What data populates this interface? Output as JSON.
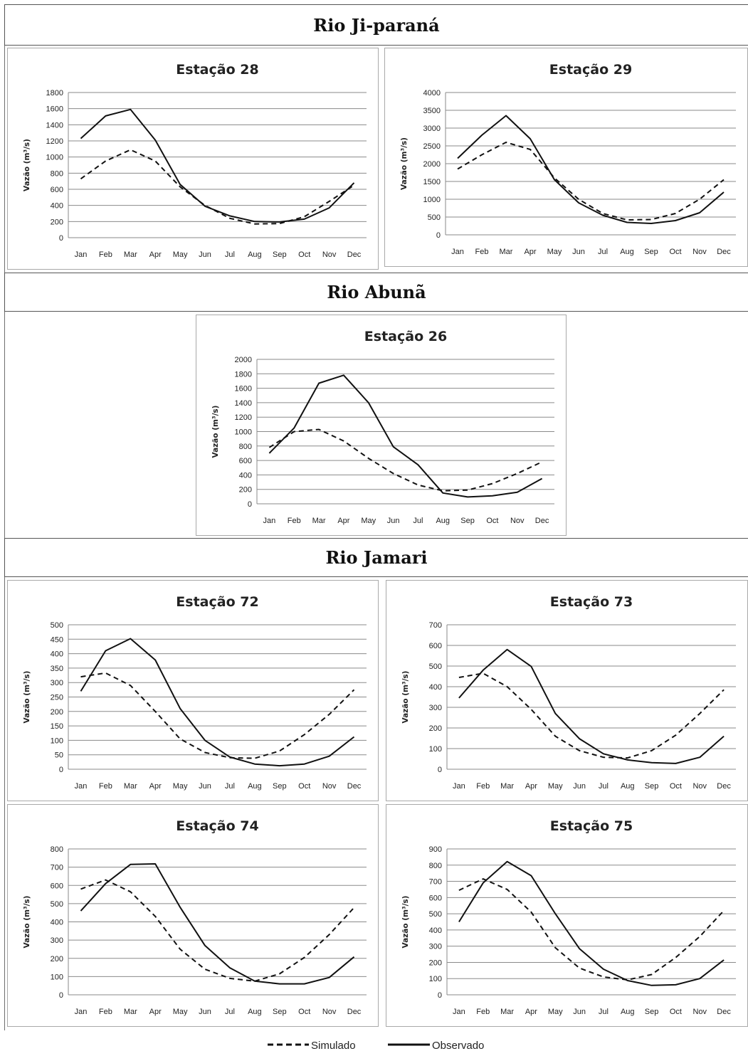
{
  "sections": [
    {
      "title": "Rio Ji-paraná"
    },
    {
      "title": "Rio Abunã"
    },
    {
      "title": "Rio Jamari"
    }
  ],
  "legend": {
    "simulated": "Simulado",
    "observed": "Observado"
  },
  "chart_data": [
    {
      "type": "line",
      "title": "Estação 28",
      "ylabel": "Vazão (m³/s)",
      "categories": [
        "Jan",
        "Feb",
        "Mar",
        "Apr",
        "May",
        "Jun",
        "Jul",
        "Aug",
        "Sep",
        "Oct",
        "Nov",
        "Dec"
      ],
      "ylim": [
        0,
        1800
      ],
      "yticks": [
        0,
        200,
        400,
        600,
        800,
        1000,
        1200,
        1400,
        1600,
        1800
      ],
      "grid": true,
      "series": [
        {
          "name": "Observado",
          "style": "solid",
          "values": [
            1230,
            1510,
            1590,
            1210,
            660,
            390,
            270,
            200,
            195,
            230,
            370,
            680
          ]
        },
        {
          "name": "Simulado",
          "style": "dashed",
          "values": [
            730,
            950,
            1090,
            950,
            630,
            400,
            240,
            170,
            175,
            260,
            450,
            650
          ]
        }
      ]
    },
    {
      "type": "line",
      "title": "Estação 29",
      "ylabel": "Vazão (m³/s)",
      "categories": [
        "Jan",
        "Feb",
        "Mar",
        "Apr",
        "May",
        "Jun",
        "Jul",
        "Aug",
        "Sep",
        "Oct",
        "Nov",
        "Dec"
      ],
      "ylim": [
        0,
        4000
      ],
      "yticks": [
        0,
        500,
        1000,
        1500,
        2000,
        2500,
        3000,
        3500,
        4000
      ],
      "grid": true,
      "series": [
        {
          "name": "Observado",
          "style": "solid",
          "values": [
            2150,
            2800,
            3350,
            2700,
            1550,
            900,
            550,
            350,
            320,
            400,
            620,
            1200
          ]
        },
        {
          "name": "Simulado",
          "style": "dashed",
          "values": [
            1850,
            2250,
            2600,
            2400,
            1600,
            1000,
            600,
            420,
            430,
            600,
            1000,
            1550
          ]
        }
      ]
    },
    {
      "type": "line",
      "title": "Estação 26",
      "ylabel": "Vazão (m³/s)",
      "categories": [
        "Jan",
        "Feb",
        "Mar",
        "Apr",
        "May",
        "Jun",
        "Jul",
        "Aug",
        "Sep",
        "Oct",
        "Nov",
        "Dec"
      ],
      "ylim": [
        0,
        2000
      ],
      "yticks": [
        0,
        200,
        400,
        600,
        800,
        1000,
        1200,
        1400,
        1600,
        1800,
        2000
      ],
      "grid": true,
      "series": [
        {
          "name": "Observado",
          "style": "solid",
          "values": [
            700,
            1050,
            1670,
            1780,
            1400,
            790,
            540,
            150,
            95,
            110,
            160,
            350
          ]
        },
        {
          "name": "Simulado",
          "style": "dashed",
          "values": [
            780,
            1000,
            1030,
            870,
            630,
            420,
            260,
            180,
            190,
            280,
            420,
            580
          ]
        }
      ]
    },
    {
      "type": "line",
      "title": "Estação 72",
      "ylabel": "Vazão (m³/s)",
      "categories": [
        "Jan",
        "Feb",
        "Mar",
        "Apr",
        "May",
        "Jun",
        "Jul",
        "Aug",
        "Sep",
        "Oct",
        "Nov",
        "Dec"
      ],
      "ylim": [
        0,
        500
      ],
      "yticks": [
        0,
        50,
        100,
        150,
        200,
        250,
        300,
        350,
        400,
        450,
        500
      ],
      "grid": true,
      "series": [
        {
          "name": "Observado",
          "style": "solid",
          "values": [
            270,
            410,
            452,
            378,
            210,
            100,
            42,
            18,
            12,
            18,
            45,
            112
          ]
        },
        {
          "name": "Simulado",
          "style": "dashed",
          "values": [
            320,
            333,
            290,
            200,
            105,
            58,
            40,
            38,
            63,
            120,
            190,
            275
          ]
        }
      ]
    },
    {
      "type": "line",
      "title": "Estação 73",
      "ylabel": "Vazão (m³/s)",
      "categories": [
        "Jan",
        "Feb",
        "Mar",
        "Apr",
        "May",
        "Jun",
        "Jul",
        "Aug",
        "Sep",
        "Oct",
        "Nov",
        "Dec"
      ],
      "ylim": [
        0,
        700
      ],
      "yticks": [
        0,
        100,
        200,
        300,
        400,
        500,
        600,
        700
      ],
      "grid": true,
      "series": [
        {
          "name": "Observado",
          "style": "solid",
          "values": [
            345,
            480,
            580,
            498,
            270,
            148,
            75,
            45,
            32,
            28,
            58,
            160
          ]
        },
        {
          "name": "Simulado",
          "style": "dashed",
          "values": [
            445,
            465,
            400,
            290,
            160,
            90,
            58,
            55,
            90,
            165,
            270,
            385
          ]
        }
      ]
    },
    {
      "type": "line",
      "title": "Estação 74",
      "ylabel": "Vazão (m³/s)",
      "categories": [
        "Jan",
        "Feb",
        "Mar",
        "Apr",
        "May",
        "Jun",
        "Jul",
        "Aug",
        "Sep",
        "Oct",
        "Nov",
        "Dec"
      ],
      "ylim": [
        0,
        800
      ],
      "yticks": [
        0,
        100,
        200,
        300,
        400,
        500,
        600,
        700,
        800
      ],
      "grid": true,
      "series": [
        {
          "name": "Observado",
          "style": "solid",
          "values": [
            460,
            610,
            715,
            718,
            480,
            270,
            148,
            75,
            60,
            60,
            95,
            208
          ]
        },
        {
          "name": "Simulado",
          "style": "dashed",
          "values": [
            580,
            630,
            565,
            430,
            250,
            140,
            90,
            75,
            115,
            205,
            330,
            478
          ]
        }
      ]
    },
    {
      "type": "line",
      "title": "Estação 75",
      "ylabel": "Vazão (m³/s)",
      "categories": [
        "Jan",
        "Feb",
        "Mar",
        "Apr",
        "May",
        "Jun",
        "Jul",
        "Aug",
        "Sep",
        "Oct",
        "Nov",
        "Dec"
      ],
      "ylim": [
        0,
        900
      ],
      "yticks": [
        0,
        100,
        200,
        300,
        400,
        500,
        600,
        700,
        800,
        900
      ],
      "grid": true,
      "series": [
        {
          "name": "Observado",
          "style": "solid",
          "values": [
            450,
            690,
            822,
            735,
            500,
            285,
            158,
            88,
            58,
            62,
            100,
            215
          ]
        },
        {
          "name": "Simulado",
          "style": "dashed",
          "values": [
            645,
            715,
            650,
            510,
            290,
            165,
            110,
            92,
            125,
            230,
            360,
            520
          ]
        }
      ]
    }
  ]
}
